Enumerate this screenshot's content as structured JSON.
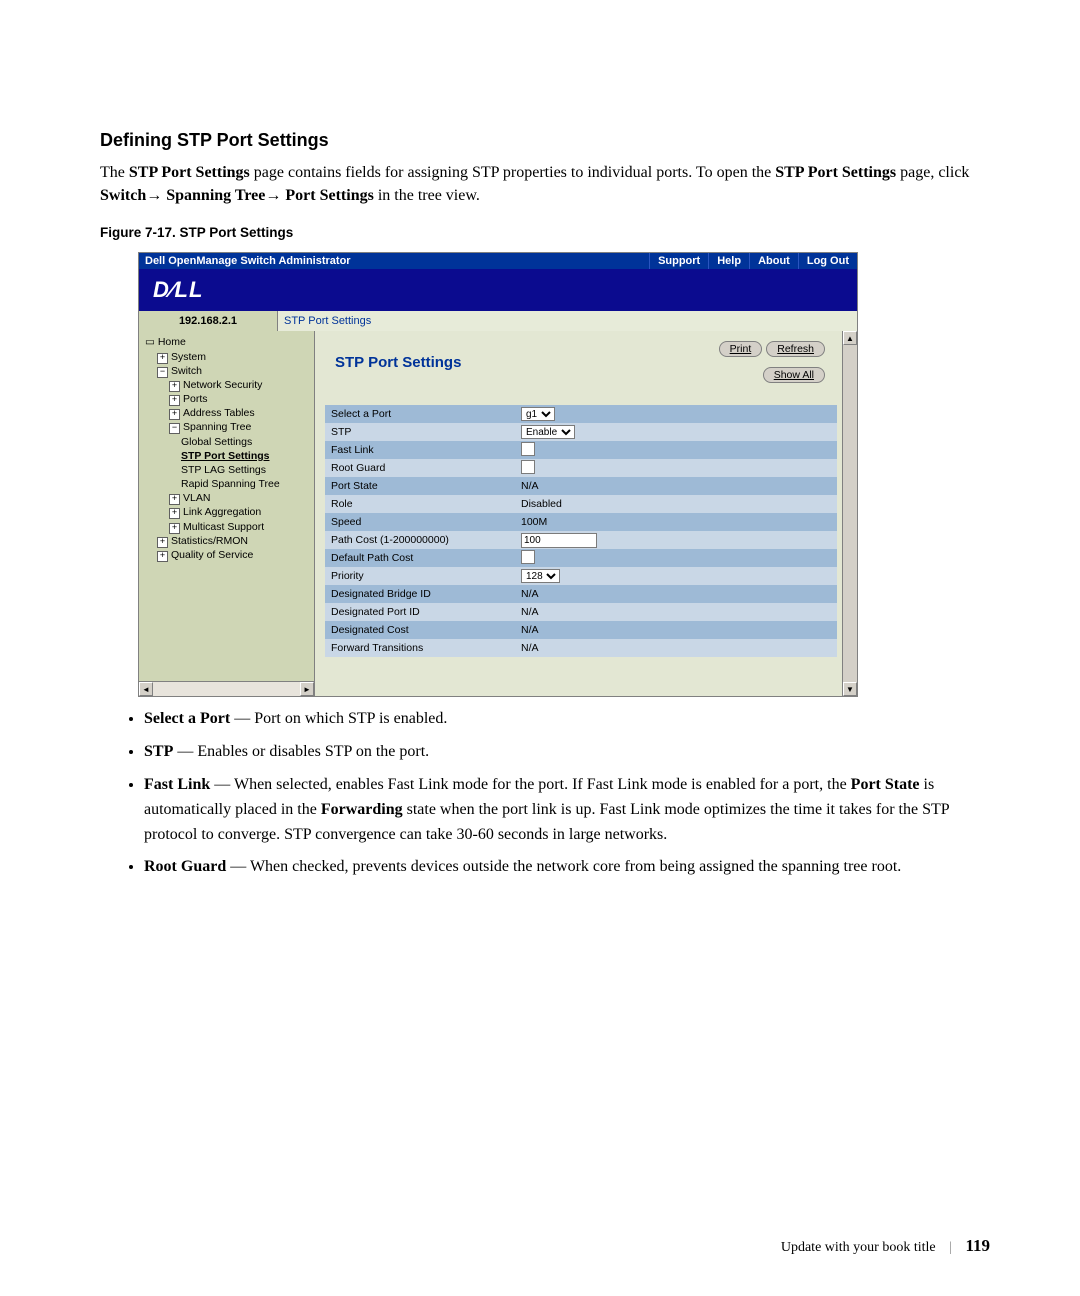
{
  "heading": "Defining STP Port Settings",
  "intro": {
    "l1_pre": "The ",
    "l1_b1": "STP Port Settings",
    "l1_mid": " page contains fields for assigning STP properties to individual ports. To open the ",
    "l2_b1": "STP Port Settings",
    "l2_mid1": " page, click ",
    "l2_b2": "Switch",
    "l2_arrow1": "→ ",
    "l2_b3": "Spanning Tree",
    "l2_arrow2": "→ ",
    "l2_b4": "Port Settings",
    "l2_tail": " in the tree view."
  },
  "figcap": "Figure 7-17.    STP Port Settings",
  "shot": {
    "title": "Dell OpenManage Switch Administrator",
    "tabs": [
      "Support",
      "Help",
      "About",
      "Log Out"
    ],
    "brand": "D∕LL",
    "ip": "192.168.2.1",
    "breadcrumb": "STP Port Settings",
    "mainTitle": "STP Port Settings",
    "buttons": {
      "print": "Print",
      "refresh": "Refresh",
      "showall": "Show All"
    },
    "tree": {
      "home": "Home",
      "system": "System",
      "switch": "Switch",
      "netsec": "Network Security",
      "ports": "Ports",
      "addr": "Address Tables",
      "span": "Spanning Tree",
      "gs": "Global Settings",
      "sps": "STP Port Settings",
      "lag": "STP LAG Settings",
      "rst": "Rapid Spanning Tree",
      "vlan": "VLAN",
      "lagg": "Link Aggregation",
      "mcast": "Multicast Support",
      "stats": "Statistics/RMON",
      "qos": "Quality of Service"
    },
    "rows": [
      {
        "label": "Select a Port",
        "ctrl": "select",
        "value": "g1"
      },
      {
        "label": "STP",
        "ctrl": "select",
        "value": "Enable"
      },
      {
        "label": "Fast Link",
        "ctrl": "check"
      },
      {
        "label": "Root Guard",
        "ctrl": "check"
      },
      {
        "label": "Port State",
        "ctrl": "text",
        "value": "N/A"
      },
      {
        "label": "Role",
        "ctrl": "text",
        "value": "Disabled"
      },
      {
        "label": "Speed",
        "ctrl": "text",
        "value": "100M"
      },
      {
        "label": "Path Cost (1-200000000)",
        "ctrl": "input",
        "value": "100"
      },
      {
        "label": "Default Path Cost",
        "ctrl": "check"
      },
      {
        "label": "Priority",
        "ctrl": "select",
        "value": "128"
      },
      {
        "label": "Designated Bridge ID",
        "ctrl": "text",
        "value": "N/A"
      },
      {
        "label": "Designated Port ID",
        "ctrl": "text",
        "value": "N/A"
      },
      {
        "label": "Designated Cost",
        "ctrl": "text",
        "value": "N/A"
      },
      {
        "label": "Forward Transitions",
        "ctrl": "text",
        "value": "N/A"
      }
    ]
  },
  "bullets": {
    "b1_b": "Select a Port",
    "b1_t": " — Port on which STP is enabled.",
    "b2_b": "STP",
    "b2_t": " — Enables or disables STP on the port.",
    "b3_b": "Fast Link",
    "b3_t1": " — When selected, enables Fast Link mode for the port. If Fast Link mode is enabled for a port, the ",
    "b3_b2": "Port State",
    "b3_t2": " is automatically placed in the ",
    "b3_b3": "Forwarding",
    "b3_t3": " state when the port link is up. Fast Link mode optimizes the time it takes for the STP protocol to converge. STP convergence can take 30-60 seconds in large networks.",
    "b4_b": "Root Guard",
    "b4_t": " — When checked, prevents devices outside the network core from being assigned the spanning tree root."
  },
  "footer": {
    "title": "Update with your book title",
    "page": "119"
  }
}
